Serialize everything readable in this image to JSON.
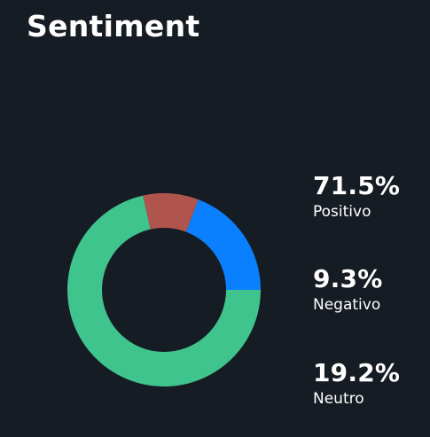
{
  "title": "Sentiment",
  "colors": {
    "background": "#161c23",
    "positivo": "#40c48e",
    "negativo": "#b0544e",
    "neutro": "#0a80ff"
  },
  "chart_data": {
    "type": "pie",
    "donut": true,
    "categories": [
      "Positivo",
      "Negativo",
      "Neutro"
    ],
    "values": [
      71.5,
      9.3,
      19.2
    ],
    "labels": [
      "71.5%",
      "9.3%",
      "19.2%"
    ],
    "colors": [
      "#40c48e",
      "#b0544e",
      "#0a80ff"
    ],
    "legend": "right"
  }
}
